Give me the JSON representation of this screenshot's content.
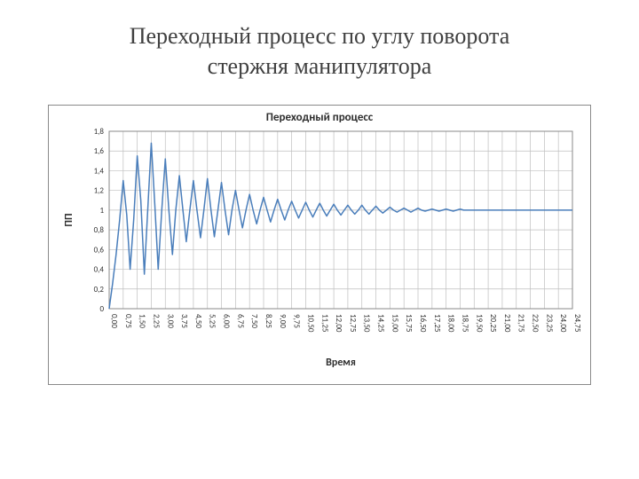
{
  "slide": {
    "title_line1": "Переходный процесс по углу поворота",
    "title_line2": "стержня манипулятора"
  },
  "chart": {
    "type": "line",
    "title": "Переходный процесс",
    "title_fontsize": 13,
    "xlabel": "Время",
    "ylabel": "ПП",
    "label_fontsize": 12,
    "tick_fontsize": 9,
    "line_color": "#4a7ebb",
    "line_width": 1.5,
    "grid_color": "#bfbfbf",
    "border_color": "#8a8a8a",
    "background_color": "#ffffff",
    "plot_background": "#ffffff",
    "ylim": [
      0,
      1.8
    ],
    "ytick_step": 0.2,
    "yticks": [
      "0",
      "0,2",
      "0,4",
      "0,6",
      "0,8",
      "1",
      "1,2",
      "1,4",
      "1,6",
      "1,8"
    ],
    "xlim": [
      0,
      24.75
    ],
    "xtick_step": 0.75,
    "xticks": [
      "0,00",
      "0,75",
      "1,50",
      "2,25",
      "3,00",
      "3,75",
      "4,50",
      "5,25",
      "6,00",
      "6,75",
      "7,50",
      "8,25",
      "9,00",
      "9,75",
      "10,50",
      "11,25",
      "12,00",
      "12,75",
      "13,50",
      "14,25",
      "15,00",
      "15,75",
      "16,50",
      "17,25",
      "18,00",
      "18,75",
      "19,50",
      "20,25",
      "21,00",
      "21,75",
      "22,50",
      "23,25",
      "24,00",
      "24,75"
    ],
    "series": {
      "settle_value": 1.0,
      "oscillation_period": 0.75,
      "data": [
        [
          0.0,
          0.0
        ],
        [
          0.18,
          0.25
        ],
        [
          0.37,
          0.55
        ],
        [
          0.56,
          0.9
        ],
        [
          0.75,
          1.3
        ],
        [
          0.94,
          0.95
        ],
        [
          1.12,
          0.4
        ],
        [
          1.31,
          0.9
        ],
        [
          1.5,
          1.55
        ],
        [
          1.69,
          1.1
        ],
        [
          1.88,
          0.35
        ],
        [
          2.06,
          1.0
        ],
        [
          2.25,
          1.68
        ],
        [
          2.44,
          1.05
        ],
        [
          2.62,
          0.4
        ],
        [
          2.81,
          1.0
        ],
        [
          3.0,
          1.52
        ],
        [
          3.19,
          1.0
        ],
        [
          3.38,
          0.55
        ],
        [
          3.56,
          1.0
        ],
        [
          3.75,
          1.35
        ],
        [
          3.94,
          1.0
        ],
        [
          4.12,
          0.68
        ],
        [
          4.31,
          1.0
        ],
        [
          4.5,
          1.3
        ],
        [
          4.69,
          1.0
        ],
        [
          4.88,
          0.72
        ],
        [
          5.06,
          1.0
        ],
        [
          5.25,
          1.32
        ],
        [
          5.44,
          1.0
        ],
        [
          5.62,
          0.73
        ],
        [
          5.81,
          1.0
        ],
        [
          6.0,
          1.28
        ],
        [
          6.19,
          1.0
        ],
        [
          6.38,
          0.75
        ],
        [
          6.56,
          1.0
        ],
        [
          6.75,
          1.2
        ],
        [
          6.94,
          1.0
        ],
        [
          7.12,
          0.82
        ],
        [
          7.31,
          1.0
        ],
        [
          7.5,
          1.16
        ],
        [
          7.69,
          1.0
        ],
        [
          7.88,
          0.86
        ],
        [
          8.06,
          1.0
        ],
        [
          8.25,
          1.13
        ],
        [
          8.44,
          1.0
        ],
        [
          8.62,
          0.88
        ],
        [
          8.81,
          1.0
        ],
        [
          9.0,
          1.11
        ],
        [
          9.19,
          1.0
        ],
        [
          9.38,
          0.9
        ],
        [
          9.56,
          1.0
        ],
        [
          9.75,
          1.09
        ],
        [
          9.94,
          1.0
        ],
        [
          10.12,
          0.92
        ],
        [
          10.31,
          1.0
        ],
        [
          10.5,
          1.08
        ],
        [
          10.69,
          1.0
        ],
        [
          10.88,
          0.93
        ],
        [
          11.06,
          1.0
        ],
        [
          11.25,
          1.07
        ],
        [
          11.44,
          1.0
        ],
        [
          11.62,
          0.94
        ],
        [
          11.81,
          1.0
        ],
        [
          12.0,
          1.06
        ],
        [
          12.19,
          1.0
        ],
        [
          12.38,
          0.95
        ],
        [
          12.56,
          1.0
        ],
        [
          12.75,
          1.05
        ],
        [
          12.94,
          1.0
        ],
        [
          13.12,
          0.96
        ],
        [
          13.31,
          1.0
        ],
        [
          13.5,
          1.05
        ],
        [
          13.69,
          1.0
        ],
        [
          13.88,
          0.96
        ],
        [
          14.06,
          1.0
        ],
        [
          14.25,
          1.04
        ],
        [
          14.44,
          1.0
        ],
        [
          14.62,
          0.97
        ],
        [
          14.81,
          1.0
        ],
        [
          15.0,
          1.03
        ],
        [
          15.19,
          1.0
        ],
        [
          15.38,
          0.98
        ],
        [
          15.56,
          1.0
        ],
        [
          15.75,
          1.02
        ],
        [
          15.94,
          1.0
        ],
        [
          16.12,
          0.98
        ],
        [
          16.31,
          1.0
        ],
        [
          16.5,
          1.02
        ],
        [
          16.69,
          1.0
        ],
        [
          16.88,
          0.99
        ],
        [
          17.06,
          1.0
        ],
        [
          17.25,
          1.01
        ],
        [
          17.44,
          1.0
        ],
        [
          17.62,
          0.99
        ],
        [
          17.81,
          1.0
        ],
        [
          18.0,
          1.01
        ],
        [
          18.19,
          1.0
        ],
        [
          18.38,
          0.99
        ],
        [
          18.56,
          1.0
        ],
        [
          18.75,
          1.01
        ],
        [
          18.94,
          1.0
        ],
        [
          19.12,
          1.0
        ],
        [
          19.31,
          1.0
        ],
        [
          19.5,
          1.0
        ],
        [
          20.25,
          1.0
        ],
        [
          21.0,
          1.0
        ],
        [
          21.75,
          1.0
        ],
        [
          22.5,
          1.0
        ],
        [
          23.25,
          1.0
        ],
        [
          24.0,
          1.0
        ],
        [
          24.75,
          1.0
        ]
      ]
    }
  }
}
